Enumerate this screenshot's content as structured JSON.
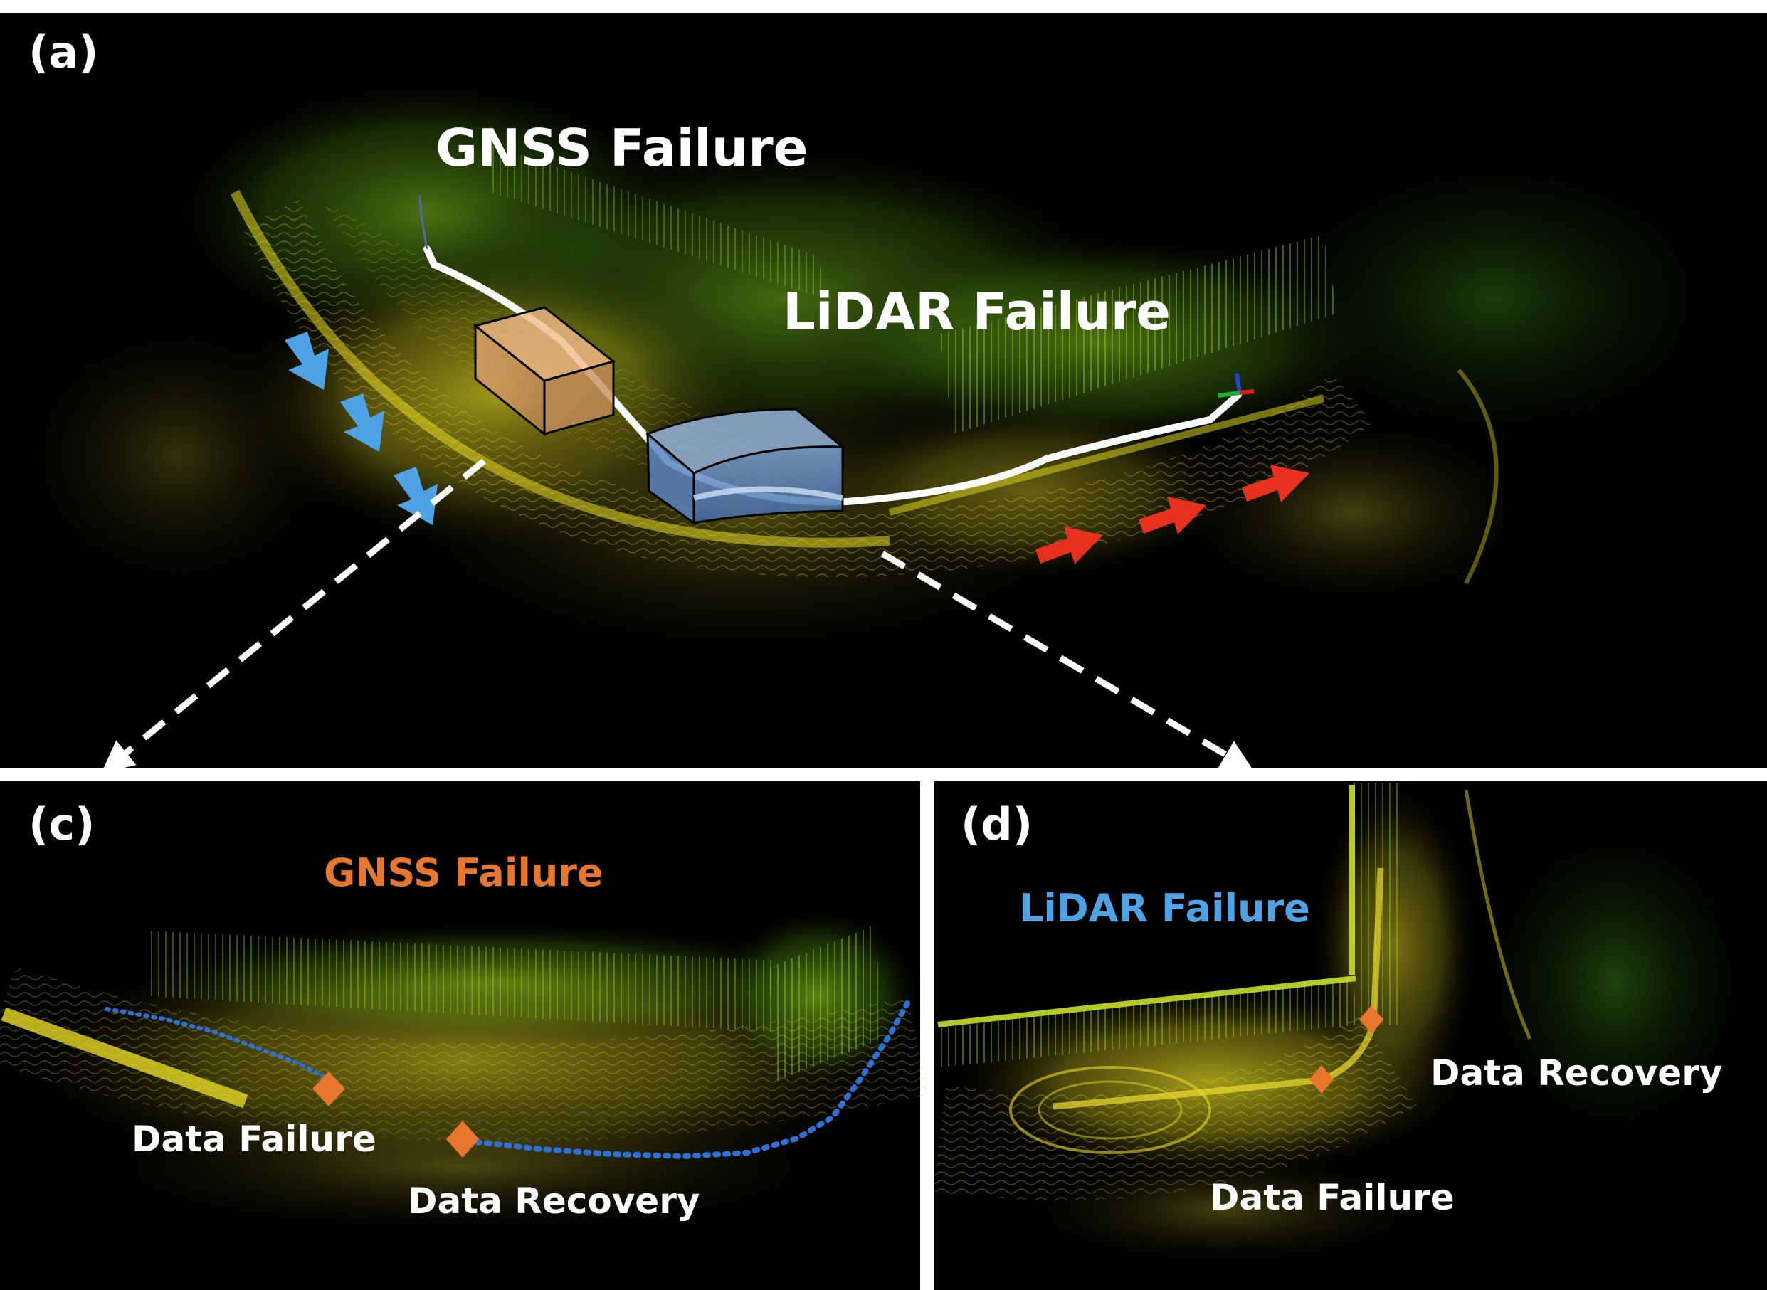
{
  "panels": {
    "a": {
      "letter": "(a)",
      "gnss_label": "GNSS Failure",
      "lidar_label": "LiDAR Failure"
    },
    "c": {
      "letter": "(c)",
      "title": "GNSS Failure",
      "failure_label": "Data Failure",
      "recovery_label": "Data Recovery"
    },
    "d": {
      "letter": "(d)",
      "title": "LiDAR Failure",
      "recovery_label": "Data Recovery",
      "failure_label": "Data Failure"
    }
  },
  "colors": {
    "background": "#000000",
    "divider": "#ffffff",
    "gnss_accent": "#e8762c",
    "lidar_accent": "#4ea3e6",
    "trajectory": "#ffffff",
    "points_yellow": "#e2dc1e",
    "points_green": "#7cc31a",
    "recovery_path": "#2f6fd6",
    "marker": "#e8762c",
    "red_arrow": "#e8301e"
  }
}
